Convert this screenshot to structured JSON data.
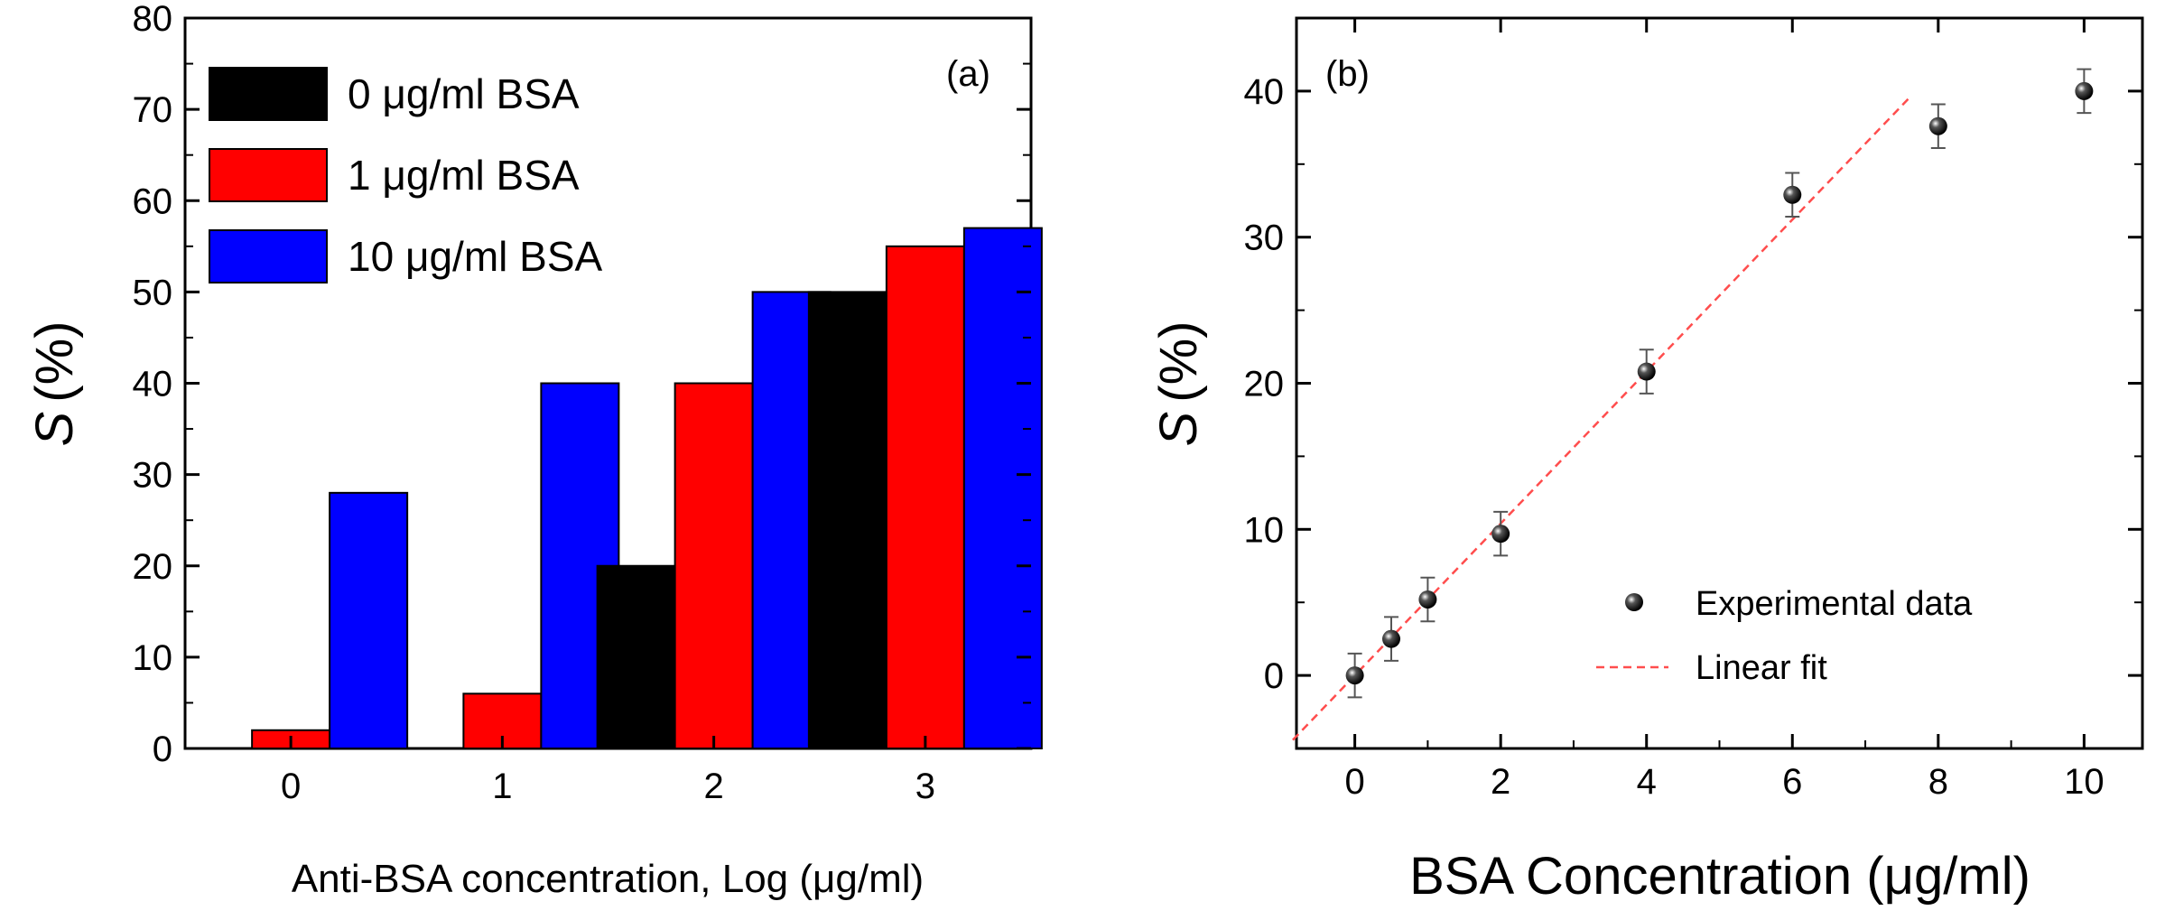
{
  "chart_data": [
    {
      "type": "bar",
      "panel_label": "(a)",
      "xlabel": "Anti-BSA concentration, Log (μg/ml)",
      "ylabel_symbol": "S",
      "ylabel_unit": "(%)",
      "categories": [
        "0",
        "1",
        "2",
        "3"
      ],
      "ylim": [
        0,
        80
      ],
      "yticks": [
        "0",
        "10",
        "20",
        "30",
        "40",
        "50",
        "60",
        "70",
        "80"
      ],
      "legend_position": "top-left",
      "series": [
        {
          "name": "0 μg/ml BSA",
          "color": "#000000",
          "values": [
            0,
            0,
            20,
            50
          ]
        },
        {
          "name": "1 μg/ml BSA",
          "color": "#ff0000",
          "values": [
            2,
            6,
            40,
            55
          ]
        },
        {
          "name": "10 μg/ml BSA",
          "color": "#0000ff",
          "values": [
            28,
            40,
            50,
            57
          ]
        }
      ]
    },
    {
      "type": "scatter",
      "panel_label": "(b)",
      "xlabel": "BSA Concentration (μg/ml)",
      "ylabel_symbol": "S",
      "ylabel_unit": "(%)",
      "xlim": [
        -0.8,
        10.8
      ],
      "ylim": [
        -5,
        45
      ],
      "xticks": [
        "0",
        "2",
        "4",
        "6",
        "8",
        "10"
      ],
      "yticks": [
        "0",
        "10",
        "20",
        "30",
        "40"
      ],
      "legend_position": "bottom-right",
      "series": [
        {
          "name": "Experimental data",
          "marker": "sphere",
          "color": "#000000",
          "points": [
            {
              "x": 0,
              "y": 0,
              "err": 1.5
            },
            {
              "x": 0.5,
              "y": 2.5,
              "err": 1.5
            },
            {
              "x": 1,
              "y": 5.2,
              "err": 1.5
            },
            {
              "x": 2,
              "y": 9.7,
              "err": 1.5
            },
            {
              "x": 4,
              "y": 20.8,
              "err": 1.5
            },
            {
              "x": 6,
              "y": 32.9,
              "err": 1.5
            },
            {
              "x": 8,
              "y": 37.6,
              "err": 1.5
            },
            {
              "x": 10,
              "y": 40,
              "err": 1.5
            }
          ]
        },
        {
          "name": "Linear fit",
          "style": "dashed",
          "color": "#ff4d4d",
          "slope": 5.2,
          "intercept": 0,
          "x_range": [
            -0.85,
            7.6
          ]
        }
      ]
    }
  ]
}
